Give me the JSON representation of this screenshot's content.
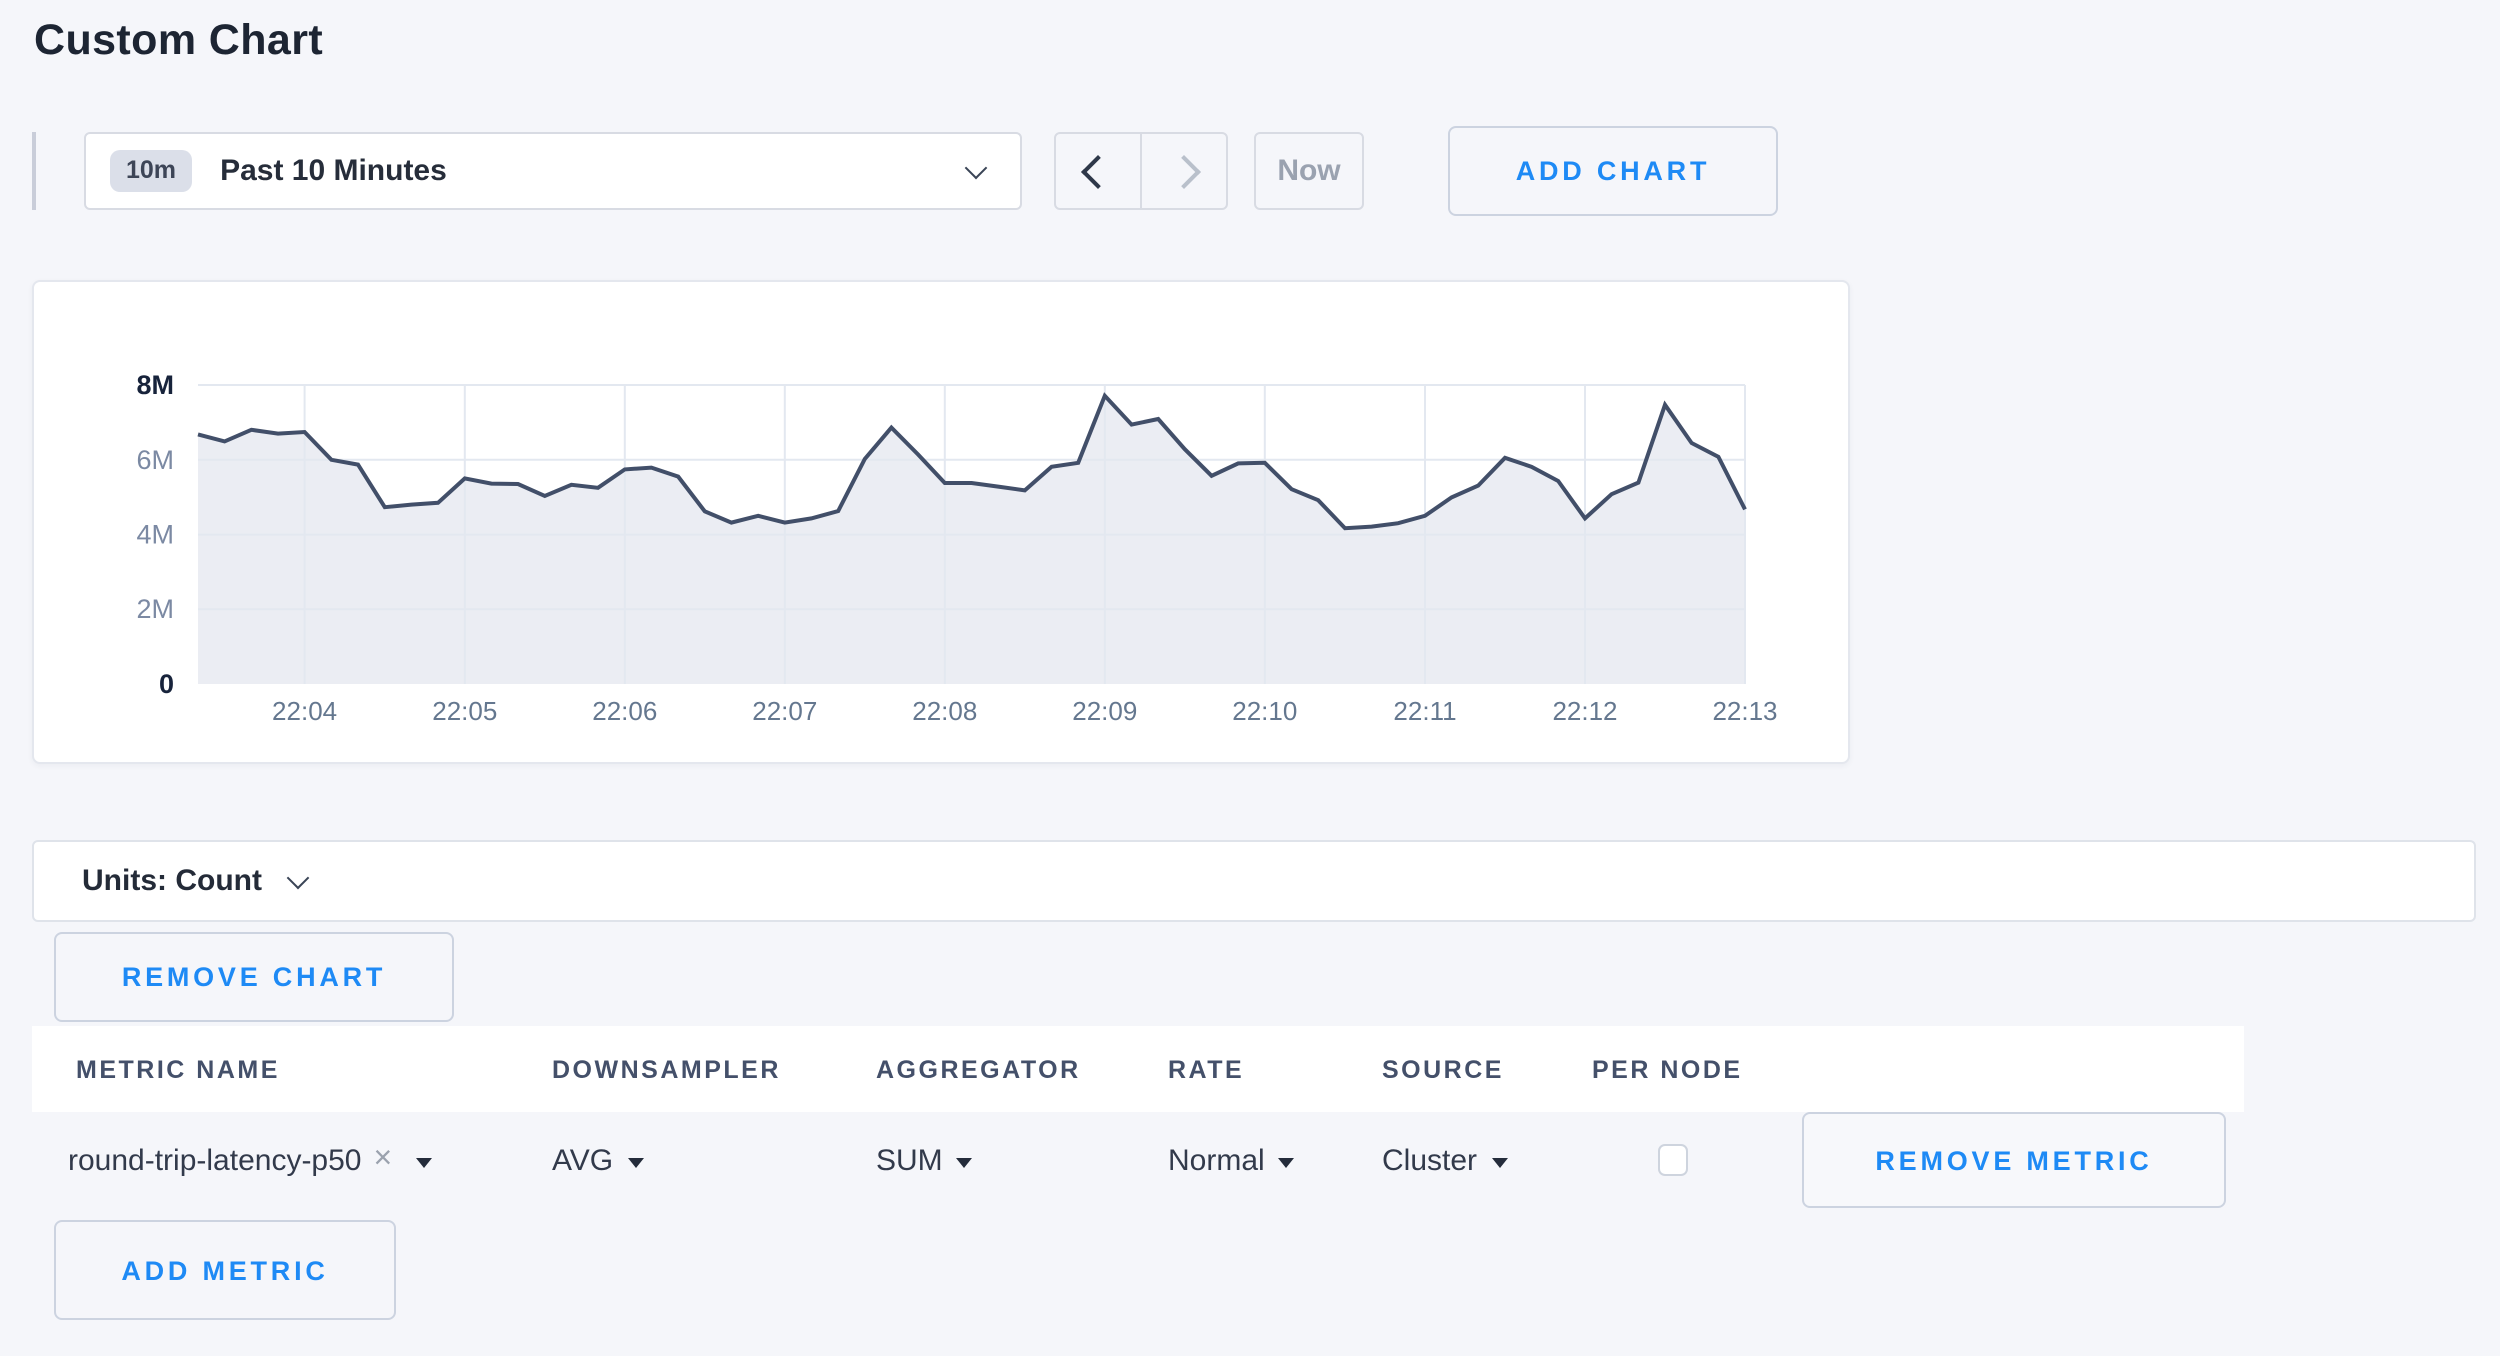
{
  "page": {
    "title": "Custom Chart"
  },
  "colors": {
    "accent_blue": "#1e8af5",
    "page_bg": "#f5f6fa",
    "chart_line": "#424f69",
    "chart_fill": "#ebedf3",
    "chart_grid": "#e3e8f0",
    "axis_label_strong": "#17233b",
    "axis_label_mid": "#7b89a3",
    "axis_label_x": "#64778f"
  },
  "toolbar": {
    "time_badge": "10m",
    "time_label": "Past 10 Minutes",
    "now_label": "Now",
    "add_chart_label": "ADD CHART"
  },
  "units_bar": {
    "label": "Units: Count"
  },
  "chart_actions": {
    "remove_chart_label": "REMOVE CHART"
  },
  "metrics_table": {
    "columns": [
      "METRIC NAME",
      "DOWNSAMPLER",
      "AGGREGATOR",
      "RATE",
      "SOURCE",
      "PER NODE"
    ],
    "row": {
      "metric_name": "round-trip-latency-p50",
      "remove_tag": "×",
      "downsampler": "AVG",
      "aggregator": "SUM",
      "rate": "Normal",
      "source": "Cluster",
      "per_node_checked": false
    },
    "remove_metric_label": "REMOVE METRIC",
    "add_metric_label": "ADD METRIC"
  },
  "chart_data": {
    "type": "area",
    "title": "",
    "xlabel": "",
    "ylabel": "count",
    "legend": "none",
    "grid": true,
    "x_start_time": "22:03:20",
    "x_interval_seconds": 10,
    "x_tick_labels": [
      "22:04",
      "22:05",
      "22:06",
      "22:07",
      "22:08",
      "22:09",
      "22:10",
      "22:11",
      "22:12",
      "22:13"
    ],
    "x_tick_indices": [
      4,
      10,
      16,
      22,
      28,
      34,
      40,
      46,
      52,
      58
    ],
    "y_tick_labels": [
      "0",
      "2M",
      "4M",
      "6M",
      "8M"
    ],
    "y_tick_values_millions": [
      0,
      2,
      4,
      6,
      8
    ],
    "ylim_millions": [
      0,
      8
    ],
    "series": [
      {
        "name": "round-trip-latency-p50",
        "values_millions": [
          6.68,
          6.49,
          6.8,
          6.7,
          6.74,
          6.0,
          5.87,
          4.73,
          4.8,
          4.85,
          5.5,
          5.36,
          5.35,
          5.03,
          5.33,
          5.25,
          5.74,
          5.79,
          5.55,
          4.62,
          4.32,
          4.5,
          4.32,
          4.43,
          4.63,
          6.02,
          6.86,
          6.14,
          5.38,
          5.38,
          5.28,
          5.18,
          5.81,
          5.92,
          7.71,
          6.94,
          7.09,
          6.28,
          5.57,
          5.9,
          5.92,
          5.21,
          4.92,
          4.17,
          4.21,
          4.3,
          4.5,
          4.99,
          5.31,
          6.05,
          5.81,
          5.43,
          4.43,
          5.08,
          5.39,
          7.47,
          6.45,
          6.08,
          4.67
        ]
      }
    ]
  }
}
